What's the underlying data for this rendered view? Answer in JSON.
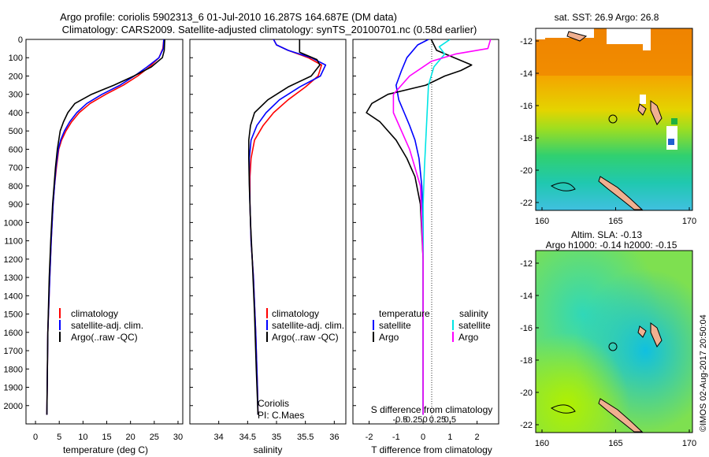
{
  "header": {
    "title_line1": "Argo profile: coriolis 5902313_6 01-Jul-2010 16.287S 164.687E (DM data)",
    "title_line2": "Climatology: CARS2009. Satellite-adjusted climatology: synTS_20100701.nc (0.58d earlier)"
  },
  "credits": {
    "institution": "Coriolis",
    "pi": "PI: C.Maes",
    "imos_stamp": "©IMOS 02-Aug-2017 20:50:04"
  },
  "legend": {
    "climatology": "climatology",
    "satellite_clim": "satellite-adj. clim.",
    "argo_raw": "Argo(..raw -QC)",
    "temperature_heading": "temperature",
    "salinity_heading": "salinity",
    "satellite": "satellite",
    "argo": "Argo"
  },
  "colors": {
    "climatology": "#ff0000",
    "satellite": "#0000ff",
    "argo": "#000000",
    "sal_satellite": "#00e5e5",
    "sal_argo": "#ff00ff"
  },
  "maps": {
    "sst_title": "sat. SST: 26.9 Argo: 26.8",
    "sla_title_line1": "Altim. SLA: -0.13",
    "sla_title_line2": "Argo h1000: -0.14 h2000: -0.15",
    "lat_ticks": [
      "-12",
      "-14",
      "-16",
      "-18",
      "-20",
      "-22"
    ],
    "lon_ticks": [
      "160",
      "165",
      "170"
    ]
  },
  "chart_data": [
    {
      "type": "line",
      "panel": "temperature",
      "xlabel": "temperature (deg C)",
      "ylabel": "",
      "xlim": [
        -2,
        31
      ],
      "ylim": [
        2100,
        0
      ],
      "xticks": [
        0,
        5,
        10,
        15,
        20,
        25,
        30
      ],
      "yticks": [
        0,
        100,
        200,
        300,
        400,
        500,
        600,
        700,
        800,
        900,
        1000,
        1100,
        1200,
        1300,
        1400,
        1500,
        1600,
        1700,
        1800,
        1900,
        2000
      ],
      "series": [
        {
          "name": "climatology",
          "color": "#ff0000",
          "x": [
            27,
            26.8,
            26,
            24,
            21.5,
            18.5,
            14.8,
            11.5,
            9.2,
            7.6,
            6.4,
            5.5,
            4.9,
            4.4,
            4.0,
            3.7,
            3.3,
            3.0,
            2.6,
            2.4
          ],
          "y": [
            0,
            50,
            100,
            150,
            200,
            250,
            300,
            350,
            400,
            450,
            500,
            550,
            600,
            700,
            800,
            900,
            1100,
            1300,
            1600,
            2050
          ]
        },
        {
          "name": "satellite-adj. clim.",
          "color": "#0000ff",
          "x": [
            27,
            26.9,
            26,
            23.5,
            20.8,
            17.8,
            14.0,
            10.8,
            8.7,
            7.2,
            6.1,
            5.3,
            4.8,
            4.3,
            4.0,
            3.7,
            3.3,
            3.0,
            2.6,
            2.4
          ],
          "y": [
            0,
            50,
            100,
            150,
            200,
            250,
            300,
            350,
            400,
            450,
            500,
            550,
            600,
            700,
            800,
            900,
            1100,
            1300,
            1600,
            2050
          ]
        },
        {
          "name": "Argo(..raw -QC)",
          "color": "#000000",
          "x": [
            27.2,
            27.1,
            26.7,
            24.4,
            20.7,
            16.5,
            11.8,
            8.3,
            6.8,
            5.9,
            5.2,
            4.6,
            4.2,
            3.9,
            3.6,
            3.2,
            2.9,
            2.6,
            2.4
          ],
          "y": [
            0,
            60,
            100,
            150,
            200,
            250,
            300,
            350,
            400,
            450,
            500,
            600,
            700,
            800,
            900,
            1100,
            1300,
            1600,
            2050
          ]
        }
      ]
    },
    {
      "type": "line",
      "panel": "salinity",
      "xlabel": "salinity",
      "xlim": [
        33.5,
        36.2
      ],
      "ylim": [
        2100,
        0
      ],
      "xticks": [
        34,
        34.5,
        35,
        35.5,
        36
      ],
      "series": [
        {
          "name": "climatology",
          "color": "#ff0000",
          "x": [
            34.95,
            35.0,
            35.2,
            35.55,
            35.78,
            35.72,
            35.5,
            35.2,
            34.95,
            34.77,
            34.62,
            34.56,
            34.54,
            34.54,
            34.56,
            34.6,
            34.64,
            34.67,
            34.68
          ],
          "y": [
            0,
            30,
            60,
            100,
            140,
            200,
            260,
            330,
            400,
            470,
            550,
            650,
            750,
            900,
            1100,
            1300,
            1600,
            1900,
            2050
          ]
        },
        {
          "name": "satellite-adj. clim.",
          "color": "#0000ff",
          "x": [
            34.95,
            35.0,
            35.2,
            35.6,
            35.85,
            35.76,
            35.4,
            35.05,
            34.82,
            34.66,
            34.56,
            34.53,
            34.53,
            34.54,
            34.56,
            34.6,
            34.64,
            34.67,
            34.68
          ],
          "y": [
            0,
            30,
            60,
            100,
            140,
            200,
            260,
            330,
            400,
            470,
            550,
            650,
            750,
            900,
            1100,
            1300,
            1600,
            1900,
            2050
          ]
        },
        {
          "name": "Argo(..raw -QC)",
          "color": "#000000",
          "x": [
            35.4,
            35.4,
            35.7,
            35.75,
            35.6,
            35.2,
            34.85,
            34.62,
            34.55,
            34.52,
            34.52,
            34.53,
            34.55,
            34.58,
            34.62,
            34.65,
            34.68
          ],
          "y": [
            0,
            70,
            110,
            140,
            200,
            260,
            330,
            400,
            470,
            550,
            650,
            800,
            1000,
            1200,
            1500,
            1800,
            2050
          ]
        }
      ]
    },
    {
      "type": "line",
      "panel": "difference",
      "xlabel": "T difference from climatology",
      "top_label": "S difference from climatology",
      "xlim": [
        -2.6,
        2.8
      ],
      "ylim": [
        2100,
        0
      ],
      "xticks": [
        "-2",
        "-1",
        "0",
        "1",
        "2"
      ],
      "top_xticks": [
        "-0.5",
        "-0.25",
        "0",
        "0.25",
        "0.5"
      ],
      "series": [
        {
          "name": "temperature satellite",
          "color": "#0000ff",
          "x": [
            0.2,
            -0.2,
            -0.6,
            -0.8,
            -1.0,
            -0.9,
            -0.7,
            -0.5,
            -0.3,
            -0.15,
            -0.05,
            0,
            0,
            0
          ],
          "y": [
            0,
            30,
            100,
            170,
            250,
            330,
            400,
            470,
            550,
            650,
            800,
            1000,
            1500,
            2050
          ]
        },
        {
          "name": "temperature Argo",
          "color": "#000000",
          "x": [
            0.3,
            0.5,
            1.8,
            1.4,
            0.8,
            0.1,
            -1.3,
            -1.9,
            -2.1,
            -1.6,
            -1.0,
            -0.6,
            -0.3,
            -0.1,
            0,
            0,
            0
          ],
          "y": [
            0,
            60,
            140,
            170,
            200,
            250,
            300,
            350,
            400,
            450,
            550,
            650,
            750,
            900,
            1200,
            1600,
            2050
          ]
        },
        {
          "name": "salinity satellite",
          "color": "#00e5e5",
          "x": [
            1.0,
            0.6,
            0.8,
            0.4,
            0.2,
            0.15,
            0.1,
            0.05,
            0,
            0,
            0
          ],
          "y": [
            0,
            40,
            80,
            150,
            250,
            400,
            550,
            700,
            900,
            1400,
            2050
          ]
        },
        {
          "name": "salinity Argo",
          "color": "#ff00ff",
          "x": [
            2.5,
            2.4,
            1.2,
            0.3,
            -0.5,
            -1.1,
            -1.1,
            -0.5,
            -0.1,
            0,
            0
          ],
          "y": [
            0,
            50,
            80,
            120,
            200,
            300,
            400,
            600,
            800,
            1200,
            2050
          ]
        }
      ]
    }
  ]
}
